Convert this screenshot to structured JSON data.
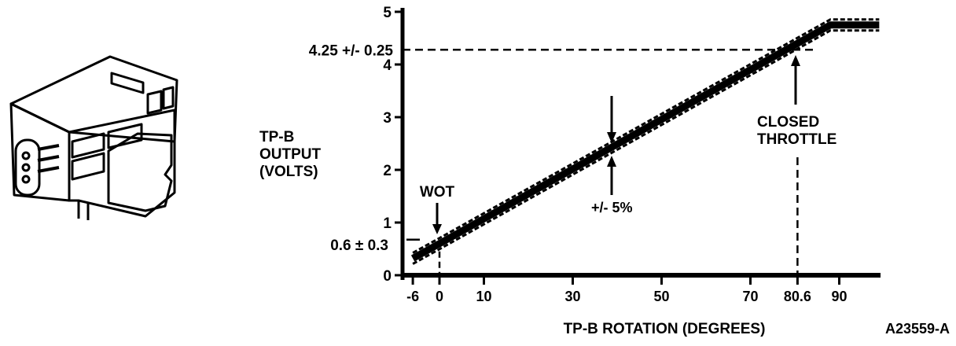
{
  "figure_id": "A23559-A",
  "chart_data": {
    "type": "line",
    "title": "",
    "xlabel": "TP-B ROTATION (DEGREES)",
    "ylabel_lines": [
      "TP-B",
      "OUTPUT",
      "(VOLTS)"
    ],
    "xlim": [
      -6,
      99
    ],
    "ylim": [
      0,
      5
    ],
    "x_ticks": [
      {
        "value": -6,
        "label": "-6"
      },
      {
        "value": 0,
        "label": "0"
      },
      {
        "value": 10,
        "label": "10"
      },
      {
        "value": 30,
        "label": "30"
      },
      {
        "value": 50,
        "label": "50"
      },
      {
        "value": 70,
        "label": "70"
      },
      {
        "value": 80.6,
        "label": "80.6"
      },
      {
        "value": 90,
        "label": "90"
      }
    ],
    "y_ticks": [
      {
        "value": 0,
        "label": "0"
      },
      {
        "value": 1,
        "label": "1"
      },
      {
        "value": 2,
        "label": "2"
      },
      {
        "value": 3,
        "label": "3"
      },
      {
        "value": 4,
        "label": "4"
      },
      {
        "value": 5,
        "label": "5"
      }
    ],
    "series": [
      {
        "name": "TP-B output nominal",
        "x": [
          -6,
          0,
          88,
          99
        ],
        "y": [
          0.32,
          0.6,
          4.75,
          4.75
        ]
      }
    ],
    "tolerance_band_percent": 5,
    "reference_lines": [
      {
        "axis": "y",
        "value": 4.25,
        "label": "4.25 +/- 0.25"
      },
      {
        "axis": "y",
        "value": 0.6,
        "label": "0.6 ± 0.3"
      },
      {
        "axis": "x",
        "value": 80.6,
        "label": "CLOSED THROTTLE"
      },
      {
        "axis": "x",
        "value": 0,
        "label": "WOT"
      }
    ],
    "annotations": {
      "wot": "WOT",
      "closed_throttle": [
        "CLOSED",
        "THROTTLE"
      ],
      "tolerance": "+/- 5%",
      "high_ref": "4.25 +/- 0.25",
      "low_ref": "0.6 ± 0.3"
    },
    "grid": false,
    "legend": "none"
  }
}
